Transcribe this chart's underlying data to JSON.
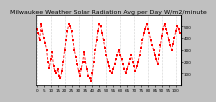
{
  "title": "Milwaukee Weather Solar Radiation Avg per Day W/m2/minute",
  "line_color": "#ff0000",
  "bg_color": "#ffffff",
  "plot_bg": "#ffffff",
  "outer_bg": "#c0c0c0",
  "grid_color": "#aaaaaa",
  "ylabel_color": "#000000",
  "ylim": [
    0,
    600
  ],
  "ytick_values": [
    100,
    200,
    300,
    400,
    500
  ],
  "num_points": 104,
  "values": [
    480,
    440,
    380,
    520,
    460,
    400,
    360,
    300,
    200,
    150,
    220,
    280,
    160,
    120,
    100,
    140,
    80,
    60,
    120,
    200,
    300,
    380,
    460,
    520,
    500,
    460,
    380,
    300,
    240,
    180,
    120,
    80,
    140,
    200,
    280,
    200,
    140,
    80,
    60,
    40,
    100,
    200,
    300,
    380,
    460,
    520,
    500,
    440,
    380,
    320,
    260,
    200,
    160,
    120,
    100,
    140,
    180,
    220,
    260,
    300,
    260,
    220,
    180,
    140,
    100,
    140,
    180,
    220,
    260,
    200,
    160,
    120,
    160,
    200,
    260,
    320,
    380,
    440,
    480,
    520,
    480,
    440,
    380,
    340,
    300,
    260,
    220,
    180,
    260,
    340,
    420,
    480,
    520,
    480,
    440,
    380,
    340,
    300,
    350,
    400,
    460,
    500,
    480,
    440
  ],
  "vgrid_interval": 10,
  "title_fontsize": 4.5,
  "tick_fontsize": 3.0,
  "marker_size": 1.5,
  "line_width": 0.6
}
